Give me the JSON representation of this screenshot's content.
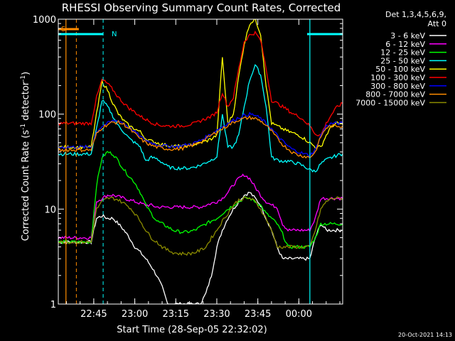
{
  "chart_data": {
    "type": "line",
    "title": "RHESSI Observing Summary Count Rates, Corrected",
    "xlabel": "Start Time (28-Sep-05 22:32:02)",
    "ylabel_main": "Corrected Count Rate (s",
    "ylabel_sup1": "-1",
    "ylabel_mid": " detector",
    "ylabel_sup2": "-1",
    "ylabel_end": ")",
    "yscale": "log",
    "ylim": [
      1,
      1000
    ],
    "xlim_minutes": [
      0,
      104
    ],
    "x_ticks": [
      {
        "label": "22:45",
        "m": 12.97
      },
      {
        "label": "23:00",
        "m": 27.97
      },
      {
        "label": "23:15",
        "m": 42.97
      },
      {
        "label": "23:30",
        "m": 57.97
      },
      {
        "label": "23:45",
        "m": 72.97
      },
      {
        "label": "00:00",
        "m": 87.97
      }
    ],
    "y_ticks": [
      {
        "label": "1",
        "v": 1
      },
      {
        "label": "10",
        "v": 10
      },
      {
        "label": "100",
        "v": 100
      },
      {
        "label": "1000",
        "v": 1000
      }
    ],
    "legend_header": [
      "Det 1,3,4,5,6,9,",
      "Att 0"
    ],
    "footer_date": "20-Oct-2021 14:13",
    "x": [
      0,
      2,
      4,
      6,
      8,
      10,
      12,
      14,
      16,
      18,
      20,
      22,
      24,
      26,
      28,
      30,
      32,
      34,
      36,
      38,
      40,
      42,
      44,
      46,
      48,
      50,
      52,
      54,
      56,
      58,
      60,
      62,
      64,
      66,
      68,
      70,
      72,
      74,
      76,
      78,
      80,
      82,
      84,
      86,
      88,
      90,
      92,
      94,
      96,
      98,
      100,
      102,
      104
    ],
    "series": [
      {
        "name": "3 - 6 keV",
        "color": "#ffffff",
        "values": [
          4.5,
          4.5,
          4.5,
          4.5,
          4.5,
          4.5,
          4.5,
          8,
          8.5,
          8,
          8,
          7,
          6,
          5,
          4,
          3.5,
          3,
          2.5,
          2,
          1.5,
          1,
          1,
          1,
          1,
          1,
          1,
          1,
          1.3,
          2,
          4,
          6,
          8,
          10,
          12,
          14,
          15,
          13,
          11,
          8,
          6,
          4,
          3,
          3,
          3,
          3,
          3,
          3,
          5,
          7,
          6,
          6,
          6,
          6
        ]
      },
      {
        "name": "6 - 12 keV",
        "color": "#ff00ff",
        "values": [
          5,
          5,
          5,
          5,
          5,
          5,
          5,
          12,
          13,
          14,
          14,
          13.5,
          13,
          12.5,
          12,
          11.5,
          11,
          11,
          10.5,
          10.5,
          10.5,
          10.5,
          10.5,
          10.5,
          10.5,
          10.5,
          10.5,
          11,
          11.5,
          12,
          13,
          15,
          18,
          21,
          23,
          21,
          17,
          14,
          12,
          11,
          10.5,
          7,
          6,
          6,
          6,
          6,
          6,
          8,
          13,
          13,
          13,
          13,
          13
        ]
      },
      {
        "name": "12 - 25 keV",
        "color": "#00ff00",
        "values": [
          4.5,
          4.5,
          4.5,
          4.5,
          4.5,
          4.5,
          4.5,
          18,
          35,
          40,
          38,
          32,
          26,
          22,
          19,
          15,
          11,
          9,
          7.5,
          7,
          6.5,
          6,
          5.8,
          5.7,
          5.8,
          6,
          6.5,
          7,
          7.5,
          8,
          9,
          10,
          11,
          12,
          13,
          13,
          12,
          11,
          9,
          8,
          7,
          5.5,
          4,
          4,
          4,
          4,
          4,
          5,
          7,
          7,
          7,
          7,
          7
        ]
      },
      {
        "name": "25 - 50 keV",
        "color": "#00ffff",
        "values": [
          38,
          38,
          38,
          38,
          38,
          38,
          38,
          70,
          140,
          120,
          95,
          75,
          65,
          55,
          50,
          45,
          32,
          35,
          34,
          31,
          28,
          27,
          27,
          27,
          27,
          28,
          29,
          31,
          33,
          36,
          100,
          45,
          45,
          60,
          120,
          230,
          330,
          260,
          120,
          35,
          33,
          32,
          32,
          31,
          30,
          28,
          26,
          25,
          30,
          33,
          35,
          37,
          38
        ]
      },
      {
        "name": "50 - 100 keV",
        "color": "#ffff00",
        "values": [
          45,
          45,
          45,
          45,
          45,
          45,
          45,
          100,
          220,
          180,
          130,
          100,
          85,
          75,
          70,
          65,
          55,
          52,
          50,
          48,
          47,
          46,
          46,
          46,
          47,
          48,
          50,
          52,
          55,
          60,
          400,
          80,
          100,
          250,
          550,
          900,
          1000,
          700,
          200,
          80,
          75,
          70,
          66,
          63,
          60,
          55,
          50,
          45,
          45,
          60,
          75,
          80,
          78
        ]
      },
      {
        "name": "100 - 300 keV",
        "color": "#ff0000",
        "values": [
          80,
          80,
          80,
          80,
          80,
          80,
          80,
          150,
          230,
          210,
          180,
          150,
          130,
          115,
          105,
          95,
          88,
          82,
          78,
          76,
          75,
          75,
          75,
          76,
          78,
          80,
          85,
          90,
          95,
          105,
          170,
          120,
          150,
          300,
          580,
          680,
          720,
          600,
          300,
          140,
          130,
          120,
          110,
          100,
          95,
          85,
          75,
          62,
          60,
          80,
          100,
          120,
          130
        ]
      },
      {
        "name": "300 - 800 keV",
        "color": "#0000ff",
        "values": [
          45,
          45,
          45,
          45,
          45,
          45,
          45,
          65,
          75,
          80,
          85,
          85,
          80,
          72,
          65,
          58,
          53,
          50,
          48,
          47,
          46,
          46,
          46,
          47,
          48,
          50,
          53,
          57,
          62,
          68,
          74,
          80,
          86,
          92,
          97,
          100,
          97,
          90,
          80,
          70,
          60,
          52,
          46,
          42,
          40,
          38,
          37,
          42,
          60,
          75,
          80,
          80,
          80
        ]
      },
      {
        "name": "800 - 7000 keV",
        "color": "#ff8c00",
        "values": [
          42,
          42,
          42,
          42,
          42,
          42,
          42,
          62,
          72,
          78,
          82,
          82,
          78,
          70,
          62,
          55,
          50,
          47,
          45,
          44,
          43,
          43,
          43,
          44,
          46,
          48,
          51,
          55,
          60,
          65,
          70,
          76,
          82,
          87,
          90,
          92,
          90,
          85,
          76,
          66,
          56,
          48,
          43,
          39,
          37,
          36,
          35,
          40,
          58,
          72,
          75,
          75,
          75
        ]
      },
      {
        "name": "7000 - 15000 keV",
        "color": "#8b8b00",
        "values": [
          4.5,
          4.5,
          4.5,
          4.5,
          4.5,
          4.5,
          4.5,
          10,
          12,
          13,
          13,
          12.5,
          11.5,
          10.5,
          9,
          7.5,
          6,
          5,
          4.5,
          4,
          3.7,
          3.5,
          3.4,
          3.4,
          3.4,
          3.5,
          3.7,
          4,
          5,
          6,
          7.5,
          9,
          11,
          12.5,
          13,
          13,
          12,
          10,
          8,
          6,
          4,
          4,
          4,
          4,
          4,
          4,
          4,
          6,
          10,
          12,
          13,
          13,
          13
        ]
      }
    ],
    "annotations": [
      {
        "text": "S",
        "color": "#ff8c00"
      },
      {
        "text": "N",
        "color": "#00ffff"
      }
    ],
    "overlay_colors": {
      "saa": "#ff8c00",
      "night": "#00ffff"
    },
    "saa_lines_m": [
      2.8,
      107.5
    ],
    "saa_dashed_m": [
      6.6,
      108.7
    ],
    "night_lines_m": [
      -1,
      92
    ],
    "night_dashed_m": [
      16.4,
      110.5
    ],
    "saa_bars_m": [
      [
        -2,
        7.5
      ],
      [
        108,
        112
      ]
    ],
    "night_bars_m": [
      [
        -2,
        16.4
      ],
      [
        91,
        109
      ]
    ]
  }
}
